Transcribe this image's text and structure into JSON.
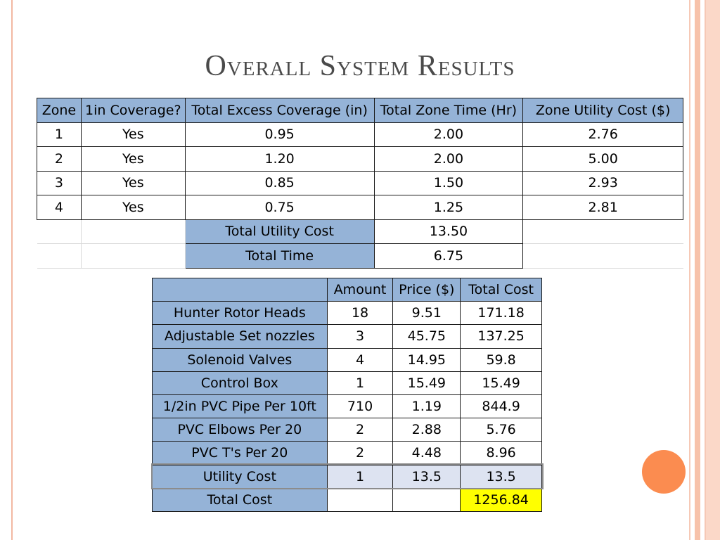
{
  "slide": {
    "title": "Overall System Results"
  },
  "zone_table": {
    "headers": [
      "Zone",
      "1in Coverage?",
      "Total Excess Coverage  (in)",
      "Total Zone Time (Hr)",
      "Zone Utility Cost ($)"
    ],
    "rows": [
      [
        "1",
        "Yes",
        "0.95",
        "2.00",
        "2.76"
      ],
      [
        "2",
        "Yes",
        "1.20",
        "2.00",
        "5.00"
      ],
      [
        "3",
        "Yes",
        "0.85",
        "1.50",
        "2.93"
      ],
      [
        "4",
        "Yes",
        "0.75",
        "1.25",
        "2.81"
      ]
    ],
    "summary": [
      {
        "label": "Total Utility Cost",
        "value": "13.50"
      },
      {
        "label": "Total Time",
        "value": "6.75"
      }
    ]
  },
  "materials_table": {
    "headers": [
      "",
      "Amount",
      "Price ($)",
      "Total Cost"
    ],
    "rows": [
      [
        "Hunter Rotor Heads",
        "18",
        "9.51",
        "171.18"
      ],
      [
        "Adjustable Set nozzles",
        "3",
        "45.75",
        "137.25"
      ],
      [
        "Solenoid Valves",
        "4",
        "14.95",
        "59.8"
      ],
      [
        "Control Box",
        "1",
        "15.49",
        "15.49"
      ],
      [
        "1/2in PVC Pipe Per 10ft",
        "710",
        "1.19",
        "844.9"
      ],
      [
        "PVC Elbows Per 20",
        "2",
        "2.88",
        "5.76"
      ],
      [
        "PVC T's Per 20",
        "2",
        "4.48",
        "8.96"
      ],
      [
        "Utility Cost",
        "1",
        "13.5",
        "13.5"
      ]
    ],
    "total": {
      "label": "Total Cost",
      "value": "1256.84"
    }
  },
  "colors": {
    "header_blue": "#95b3d7",
    "highlight_yellow": "#ffff00",
    "accent_orange": "#fb8c50",
    "utility_row_tint": "#dde3f1"
  }
}
